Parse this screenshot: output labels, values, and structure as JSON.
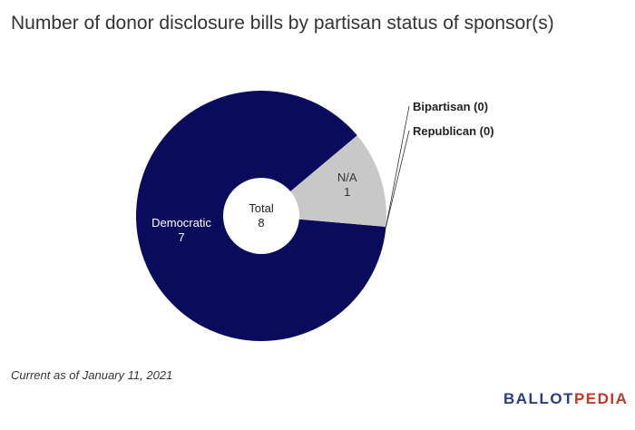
{
  "chart_data": {
    "type": "pie",
    "donut": true,
    "title": "Number of donor disclosure bills by partisan status of sponsor(s)",
    "center": {
      "label": "Total",
      "value": "8"
    },
    "slices": [
      {
        "label": "Democratic",
        "value": 7,
        "color": "#0b0b5e",
        "label_style": "inside"
      },
      {
        "label": "N/A",
        "value": 1,
        "color": "#c8c8c8",
        "label_style": "inside-dark"
      },
      {
        "label": "Bipartisan",
        "value": 0,
        "color": "#999999",
        "label_style": "callout",
        "callout_text": "Bipartisan (0)"
      },
      {
        "label": "Republican",
        "value": 0,
        "color": "#c0392b",
        "label_style": "callout",
        "callout_text": "Republican (0)"
      }
    ]
  },
  "footer": {
    "note": "Current as of January 11, 2021",
    "brand_part1": "BALLOT",
    "brand_part2": "PEDIA"
  },
  "colors": {
    "democratic": "#0b0b5e",
    "na": "#c8c8c8",
    "text": "#333333"
  }
}
